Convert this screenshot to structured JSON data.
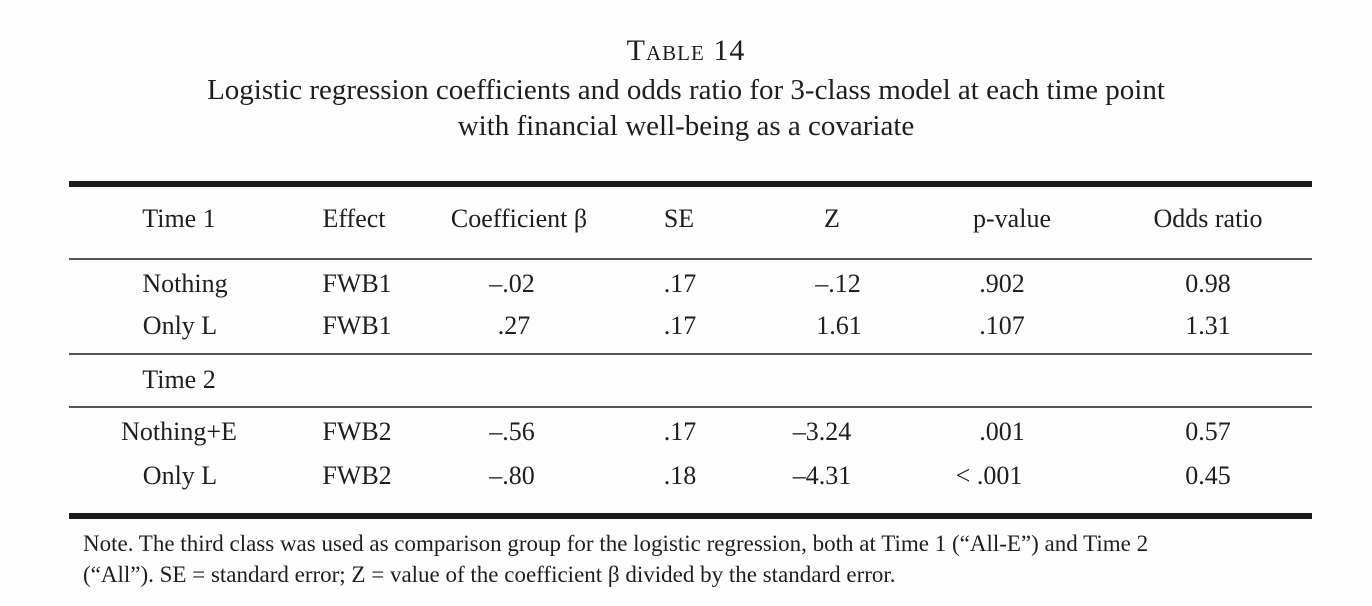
{
  "caption": {
    "label": "Table 14",
    "title_line1": "Logistic regression coefficients and odds ratio for 3-class model at each time point",
    "title_line2": "with financial well-being as a covariate"
  },
  "table": {
    "headers": [
      "Time 1",
      "Effect",
      "Coefficient β",
      "SE",
      "Z",
      "p-value",
      "Odds ratio"
    ],
    "group_time1_rows": [
      [
        "Nothing",
        "FWB1",
        "–.02",
        ".17",
        "–.12",
        ".902",
        "0.98"
      ],
      [
        "Only L",
        "FWB1",
        ".27",
        ".17",
        "1.61",
        ".107",
        "1.31"
      ]
    ],
    "group_time2_label": "Time 2",
    "group_time2_rows": [
      [
        "Nothing+E",
        "FWB2",
        "–.56",
        ".17",
        "–3.24",
        ".001",
        "0.57"
      ],
      [
        "Only L",
        "FWB2",
        "–.80",
        ".18",
        "–4.31",
        "< .001",
        "0.45"
      ]
    ]
  },
  "note": {
    "line1": "Note. The third class was used as comparison group for the logistic regression, both at Time 1 (“All-E”) and Time 2",
    "line2": "(“All”). SE = standard error; Z = value of the coefficient β divided by the standard error."
  }
}
